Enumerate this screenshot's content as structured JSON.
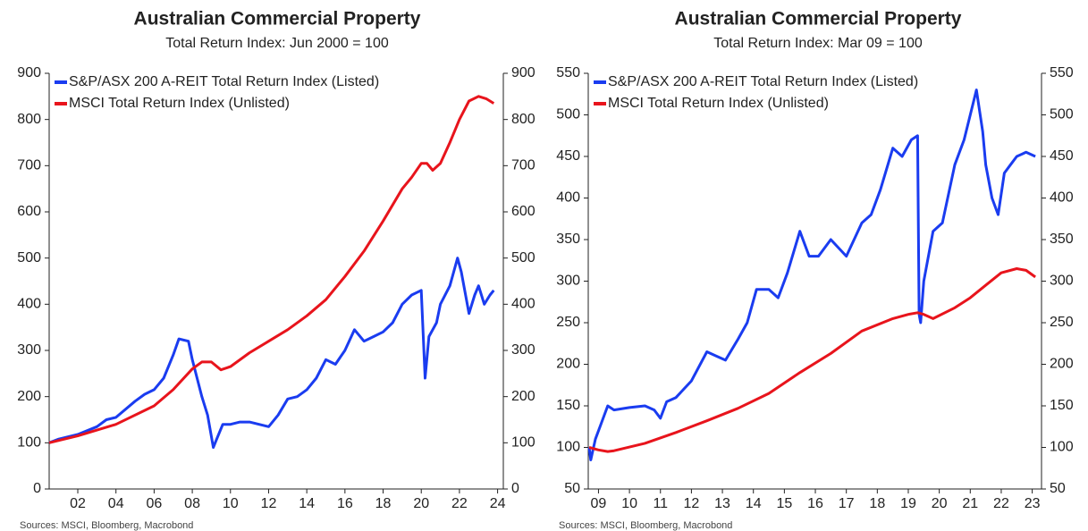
{
  "chart_data": [
    {
      "type": "line",
      "title": "Australian Commercial Property",
      "subtitle": "Total Return Index: Jun 2000 = 100",
      "source": "Sources: MSCI, Bloomberg, Macrobond",
      "xlim": [
        0.5,
        24.3
      ],
      "xticks": [
        {
          "value": 2,
          "label": "02"
        },
        {
          "value": 4,
          "label": "04"
        },
        {
          "value": 6,
          "label": "06"
        },
        {
          "value": 8,
          "label": "08"
        },
        10,
        12,
        14,
        16,
        18,
        20,
        22,
        24
      ],
      "ylim": [
        0,
        900
      ],
      "yticks": [
        0,
        100,
        200,
        300,
        400,
        500,
        600,
        700,
        800,
        900
      ],
      "y2lim": [
        0,
        900
      ],
      "y2ticks": [
        0,
        100,
        200,
        300,
        400,
        500,
        600,
        700,
        800,
        900
      ],
      "legend": "upper-left",
      "series": [
        {
          "name": "S&P/ASX 200 A-REIT Total Return Index (Listed)",
          "color": "#1a3cf0",
          "x": [
            0.5,
            1,
            2,
            3,
            3.5,
            4,
            5,
            5.5,
            6,
            6.5,
            7,
            7.3,
            7.8,
            8,
            8.5,
            8.8,
            9.1,
            9.3,
            9.6,
            10,
            10.5,
            11,
            11.5,
            12,
            12.5,
            13,
            13.5,
            14,
            14.5,
            15,
            15.5,
            16,
            16.5,
            17,
            17.5,
            18,
            18.5,
            19,
            19.5,
            20,
            20.2,
            20.4,
            20.8,
            21,
            21.5,
            21.9,
            22.1,
            22.5,
            22.8,
            23,
            23.3,
            23.6,
            23.8
          ],
          "values": [
            100,
            108,
            118,
            135,
            150,
            155,
            190,
            205,
            215,
            240,
            290,
            325,
            320,
            280,
            200,
            160,
            90,
            110,
            140,
            140,
            145,
            145,
            140,
            135,
            160,
            195,
            200,
            215,
            240,
            280,
            270,
            300,
            345,
            320,
            330,
            340,
            360,
            400,
            420,
            430,
            240,
            330,
            360,
            400,
            440,
            500,
            470,
            380,
            420,
            440,
            400,
            420,
            430
          ]
        },
        {
          "name": "MSCI Total Return Index (Unlisted)",
          "color": "#e8141c",
          "x": [
            0.5,
            2,
            4,
            6,
            7,
            8,
            8.5,
            9,
            9.5,
            10,
            11,
            12,
            13,
            14,
            15,
            16,
            17,
            18,
            19,
            19.5,
            20,
            20.3,
            20.6,
            21,
            21.5,
            22,
            22.5,
            23,
            23.4,
            23.8
          ],
          "values": [
            100,
            115,
            140,
            180,
            215,
            260,
            275,
            275,
            258,
            265,
            295,
            320,
            345,
            375,
            410,
            460,
            515,
            580,
            650,
            675,
            705,
            705,
            690,
            705,
            750,
            800,
            840,
            850,
            845,
            835
          ]
        }
      ]
    },
    {
      "type": "line",
      "title": "Australian Commercial Property",
      "subtitle": "Total Return Index: Mar 09 = 100",
      "source": "Sources: MSCI, Bloomberg, Macrobond",
      "xlim": [
        9.17,
        23.8
      ],
      "xticks": [
        {
          "value": 9.5,
          "label": "09"
        },
        {
          "value": 10.5,
          "label": "10"
        },
        {
          "value": 11.5,
          "label": "11"
        },
        {
          "value": 12.5,
          "label": "12"
        },
        {
          "value": 13.5,
          "label": "13"
        },
        {
          "value": 14.5,
          "label": "14"
        },
        {
          "value": 15.5,
          "label": "15"
        },
        {
          "value": 16.5,
          "label": "16"
        },
        {
          "value": 17.5,
          "label": "17"
        },
        {
          "value": 18.5,
          "label": "18"
        },
        {
          "value": 19.5,
          "label": "19"
        },
        {
          "value": 20.5,
          "label": "20"
        },
        {
          "value": 21.5,
          "label": "21"
        },
        {
          "value": 22.5,
          "label": "22"
        },
        {
          "value": 23.5,
          "label": "23"
        }
      ],
      "ylim": [
        50,
        550
      ],
      "yticks": [
        50,
        100,
        150,
        200,
        250,
        300,
        350,
        400,
        450,
        500,
        550
      ],
      "y2lim": [
        50,
        550
      ],
      "y2ticks": [
        50,
        100,
        150,
        200,
        250,
        300,
        350,
        400,
        450,
        500,
        550
      ],
      "legend": "upper-left",
      "series": [
        {
          "name": "S&P/ASX 200 A-REIT Total Return Index (Listed)",
          "color": "#1a3cf0",
          "x": [
            9.2,
            9.25,
            9.4,
            9.6,
            9.8,
            10,
            10.5,
            11,
            11.3,
            11.5,
            11.7,
            12,
            12.5,
            13,
            13.3,
            13.6,
            14,
            14.3,
            14.6,
            15,
            15.3,
            15.6,
            16,
            16.3,
            16.6,
            17,
            17.5,
            18,
            18.3,
            18.6,
            19,
            19.3,
            19.6,
            19.8,
            19.85,
            19.9,
            20,
            20.3,
            20.6,
            21,
            21.3,
            21.5,
            21.7,
            21.9,
            22,
            22.2,
            22.4,
            22.6,
            22.8,
            23,
            23.3,
            23.6
          ],
          "values": [
            100,
            85,
            110,
            130,
            150,
            145,
            148,
            150,
            145,
            135,
            155,
            160,
            180,
            215,
            210,
            205,
            230,
            250,
            290,
            290,
            280,
            310,
            360,
            330,
            330,
            350,
            330,
            370,
            380,
            410,
            460,
            450,
            470,
            475,
            260,
            250,
            300,
            360,
            370,
            440,
            470,
            500,
            530,
            480,
            440,
            400,
            380,
            430,
            440,
            450,
            455,
            450
          ]
        },
        {
          "name": "MSCI Total Return Index (Unlisted)",
          "color": "#e8141c",
          "x": [
            9.2,
            9.5,
            9.8,
            10,
            11,
            12,
            13,
            14,
            15,
            16,
            17,
            18,
            19,
            19.5,
            19.8,
            20,
            20.3,
            21,
            21.5,
            22,
            22.5,
            23,
            23.3,
            23.6
          ],
          "values": [
            100,
            97,
            95,
            96,
            105,
            118,
            132,
            147,
            165,
            190,
            213,
            240,
            255,
            260,
            262,
            260,
            255,
            268,
            280,
            295,
            310,
            315,
            313,
            305
          ]
        }
      ]
    }
  ]
}
